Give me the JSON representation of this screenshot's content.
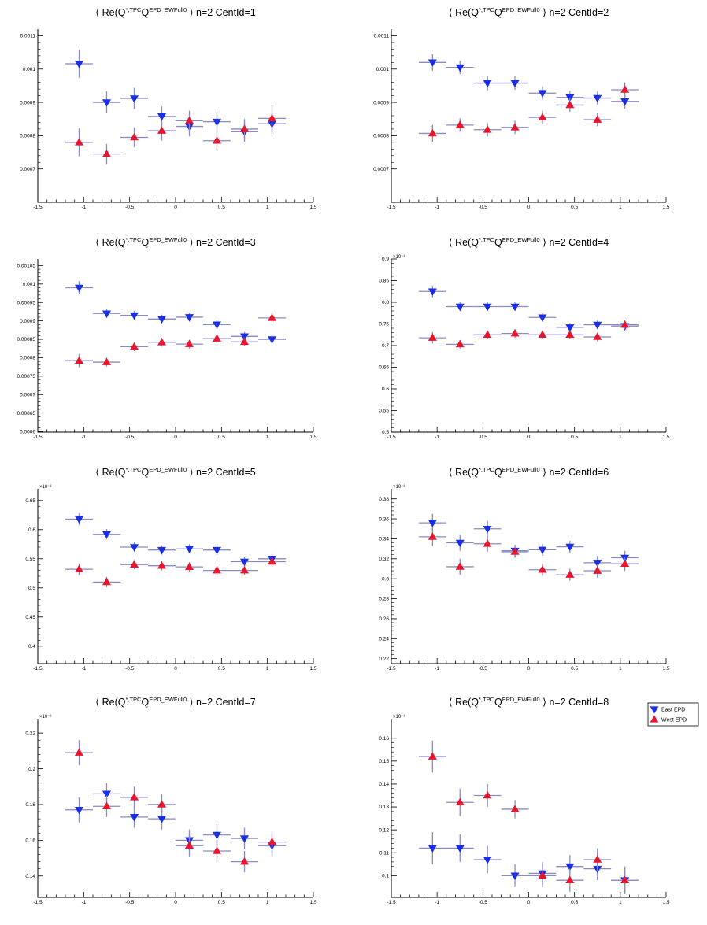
{
  "colors": {
    "east": "#1a2ee6",
    "west": "#e8162c",
    "bar": "#8a8ac8",
    "axis": "#000000"
  },
  "legend": {
    "items": [
      {
        "label": "East EPD",
        "marker": "down-triangle",
        "color": "#1a2ee6"
      },
      {
        "label": "West EPD",
        "marker": "up-triangle",
        "color": "#e8162c"
      }
    ]
  },
  "chart_data": [
    {
      "type": "scatter",
      "title_parts": {
        "pre": "⟨ Re(Q",
        "sup1": "*,TPC",
        "mid": "Q",
        "sup2": "EPD_EWFull0",
        "post": "⟩  n=2  CentId=1"
      },
      "xlim": [
        -1.5,
        1.5
      ],
      "ylim": [
        0.0006,
        0.00112
      ],
      "xticks": [
        "-1.5",
        "-1",
        "-0.5",
        "0",
        "0.5",
        "1",
        "1.5"
      ],
      "yticks": [
        {
          "v": 0.0007,
          "t": "0.0007"
        },
        {
          "v": 0.0008,
          "t": "0.0008"
        },
        {
          "v": 0.0009,
          "t": "0.0009"
        },
        {
          "v": 0.001,
          "t": "0.001"
        },
        {
          "v": 0.0011,
          "t": "0.0011"
        }
      ],
      "exponent": "",
      "x": [
        -1.05,
        -0.75,
        -0.45,
        -0.15,
        0.15,
        0.45,
        0.75,
        1.05
      ],
      "xerr": 0.15,
      "series": [
        {
          "name": "East EPD",
          "marker": "down",
          "values": [
            0.001016,
            0.0009,
            0.000912,
            0.000858,
            0.000828,
            0.000842,
            0.000812,
            0.000836
          ],
          "errors": [
            4.2e-05,
            3.3e-05,
            3.2e-05,
            3e-05,
            3e-05,
            3e-05,
            3e-05,
            3e-05
          ]
        },
        {
          "name": "West EPD",
          "marker": "up",
          "values": [
            0.00078,
            0.000745,
            0.000795,
            0.000815,
            0.000845,
            0.000785,
            0.00082,
            0.000852
          ],
          "errors": [
            4.2e-05,
            3e-05,
            3e-05,
            3e-05,
            3e-05,
            3e-05,
            3e-05,
            4e-05
          ]
        }
      ]
    },
    {
      "type": "scatter",
      "title_parts": {
        "pre": "⟨ Re(Q",
        "sup1": "*,TPC",
        "mid": "Q",
        "sup2": "EPD_EWFull0",
        "post": "⟩  n=2  CentId=2"
      },
      "xlim": [
        -1.5,
        1.5
      ],
      "ylim": [
        0.0006,
        0.00112
      ],
      "xticks": [
        "-1.5",
        "-1",
        "-0.5",
        "0",
        "0.5",
        "1",
        "1.5"
      ],
      "yticks": [
        {
          "v": 0.0007,
          "t": "0.0007"
        },
        {
          "v": 0.0008,
          "t": "0.0008"
        },
        {
          "v": 0.0009,
          "t": "0.0009"
        },
        {
          "v": 0.001,
          "t": "0.001"
        },
        {
          "v": 0.0011,
          "t": "0.0011"
        }
      ],
      "exponent": "",
      "x": [
        -1.05,
        -0.75,
        -0.45,
        -0.15,
        0.15,
        0.45,
        0.75,
        1.05
      ],
      "xerr": 0.15,
      "series": [
        {
          "name": "East EPD",
          "marker": "down",
          "values": [
            0.00102,
            0.001005,
            0.000958,
            0.000958,
            0.000928,
            0.000915,
            0.000913,
            0.000903
          ],
          "errors": [
            2.5e-05,
            2e-05,
            2.2e-05,
            2e-05,
            2e-05,
            2e-05,
            2e-05,
            2.2e-05
          ]
        },
        {
          "name": "West EPD",
          "marker": "up",
          "values": [
            0.000807,
            0.000832,
            0.000818,
            0.000825,
            0.000855,
            0.000892,
            0.000848,
            0.000938
          ],
          "errors": [
            2.5e-05,
            2e-05,
            2e-05,
            2e-05,
            2e-05,
            2e-05,
            2e-05,
            2.2e-05
          ]
        }
      ]
    },
    {
      "type": "scatter",
      "title_parts": {
        "pre": "⟨ Re(Q",
        "sup1": "*,TPC",
        "mid": "Q",
        "sup2": "EPD_EWFull0",
        "post": "⟩  n=2  CentId=3"
      },
      "xlim": [
        -1.5,
        1.5
      ],
      "ylim": [
        0.000598,
        0.001068
      ],
      "xticks": [
        "-1.5",
        "-1",
        "-0.5",
        "0",
        "0.5",
        "1",
        "1.5"
      ],
      "yticks": [
        {
          "v": 0.0006,
          "t": "0.0006"
        },
        {
          "v": 0.00065,
          "t": "0.00065"
        },
        {
          "v": 0.0007,
          "t": "0.0007"
        },
        {
          "v": 0.00075,
          "t": "0.00075"
        },
        {
          "v": 0.0008,
          "t": "0.0008"
        },
        {
          "v": 0.00085,
          "t": "0.00085"
        },
        {
          "v": 0.0009,
          "t": "0.0009"
        },
        {
          "v": 0.00095,
          "t": "0.00095"
        },
        {
          "v": 0.001,
          "t": "0.001"
        },
        {
          "v": 0.00105,
          "t": "0.00105"
        }
      ],
      "exponent": "",
      "x": [
        -1.05,
        -0.75,
        -0.45,
        -0.15,
        0.15,
        0.45,
        0.75,
        1.05
      ],
      "xerr": 0.15,
      "series": [
        {
          "name": "East EPD",
          "marker": "down",
          "values": [
            0.00099,
            0.00092,
            0.000915,
            0.000905,
            0.00091,
            0.00089,
            0.000858,
            0.00085
          ],
          "errors": [
            1.8e-05,
            1.2e-05,
            1.2e-05,
            1.2e-05,
            1.2e-05,
            1.2e-05,
            1.2e-05,
            1.2e-05
          ]
        },
        {
          "name": "West EPD",
          "marker": "up",
          "values": [
            0.000792,
            0.000788,
            0.00083,
            0.000842,
            0.000837,
            0.000852,
            0.000843,
            0.000908
          ],
          "errors": [
            1.8e-05,
            1.2e-05,
            1.2e-05,
            1.2e-05,
            1.2e-05,
            1.2e-05,
            1.2e-05,
            1.2e-05
          ]
        }
      ]
    },
    {
      "type": "scatter",
      "title_parts": {
        "pre": "⟨ Re(Q",
        "sup1": "*,TPC",
        "mid": "Q",
        "sup2": "EPD_EWFull0",
        "post": "⟩  n=2  CentId=4"
      },
      "xlim": [
        -1.5,
        1.5
      ],
      "ylim": [
        0.5,
        0.9
      ],
      "xticks": [
        "-1.5",
        "-1",
        "-0.5",
        "0",
        "0.5",
        "1",
        "1.5"
      ],
      "yticks": [
        {
          "v": 0.5,
          "t": "0.5"
        },
        {
          "v": 0.55,
          "t": "0.55"
        },
        {
          "v": 0.6,
          "t": "0.6"
        },
        {
          "v": 0.65,
          "t": "0.65"
        },
        {
          "v": 0.7,
          "t": "0.7"
        },
        {
          "v": 0.75,
          "t": "0.75"
        },
        {
          "v": 0.8,
          "t": "0.8"
        },
        {
          "v": 0.85,
          "t": "0.85"
        },
        {
          "v": 0.9,
          "t": "0.9"
        }
      ],
      "exponent": "×10⁻³",
      "x": [
        -1.05,
        -0.75,
        -0.45,
        -0.15,
        0.15,
        0.45,
        0.75,
        1.05
      ],
      "xerr": 0.15,
      "series": [
        {
          "name": "East EPD",
          "marker": "down",
          "values": [
            0.825,
            0.79,
            0.79,
            0.79,
            0.765,
            0.742,
            0.748,
            0.745
          ],
          "errors": [
            0.013,
            0.01,
            0.01,
            0.01,
            0.01,
            0.01,
            0.01,
            0.01
          ]
        },
        {
          "name": "West EPD",
          "marker": "up",
          "values": [
            0.718,
            0.703,
            0.725,
            0.728,
            0.725,
            0.725,
            0.72,
            0.748
          ],
          "errors": [
            0.013,
            0.01,
            0.01,
            0.01,
            0.01,
            0.01,
            0.01,
            0.01
          ]
        }
      ]
    },
    {
      "type": "scatter",
      "title_parts": {
        "pre": "⟨ Re(Q",
        "sup1": "*,TPC",
        "mid": "Q",
        "sup2": "EPD_EWFull0",
        "post": "⟩  n=2  CentId=5"
      },
      "xlim": [
        -1.5,
        1.5
      ],
      "ylim": [
        0.37,
        0.67
      ],
      "xticks": [
        "-1.5",
        "-1",
        "-0.5",
        "0",
        "0.5",
        "1",
        "1.5"
      ],
      "yticks": [
        {
          "v": 0.4,
          "t": "0.4"
        },
        {
          "v": 0.45,
          "t": "0.45"
        },
        {
          "v": 0.5,
          "t": "0.5"
        },
        {
          "v": 0.55,
          "t": "0.55"
        },
        {
          "v": 0.6,
          "t": "0.6"
        },
        {
          "v": 0.65,
          "t": "0.65"
        }
      ],
      "exponent": "×10⁻³",
      "x": [
        -1.05,
        -0.75,
        -0.45,
        -0.15,
        0.15,
        0.45,
        0.75,
        1.05
      ],
      "xerr": 0.15,
      "series": [
        {
          "name": "East EPD",
          "marker": "down",
          "values": [
            0.618,
            0.592,
            0.57,
            0.565,
            0.567,
            0.565,
            0.545,
            0.55
          ],
          "errors": [
            0.01,
            0.009,
            0.008,
            0.008,
            0.008,
            0.008,
            0.008,
            0.008
          ]
        },
        {
          "name": "West EPD",
          "marker": "up",
          "values": [
            0.532,
            0.51,
            0.54,
            0.538,
            0.536,
            0.53,
            0.53,
            0.545
          ],
          "errors": [
            0.01,
            0.009,
            0.008,
            0.008,
            0.008,
            0.008,
            0.008,
            0.008
          ]
        }
      ]
    },
    {
      "type": "scatter",
      "title_parts": {
        "pre": "⟨ Re(Q",
        "sup1": "*,TPC",
        "mid": "Q",
        "sup2": "EPD_EWFull0",
        "post": "⟩  n=2  CentId=6"
      },
      "xlim": [
        -1.5,
        1.5
      ],
      "ylim": [
        0.215,
        0.39
      ],
      "xticks": [
        "-1.5",
        "-1",
        "-0.5",
        "0",
        "0.5",
        "1",
        "1.5"
      ],
      "yticks": [
        {
          "v": 0.22,
          "t": "0.22"
        },
        {
          "v": 0.24,
          "t": "0.24"
        },
        {
          "v": 0.26,
          "t": "0.26"
        },
        {
          "v": 0.28,
          "t": "0.28"
        },
        {
          "v": 0.3,
          "t": "0.3"
        },
        {
          "v": 0.32,
          "t": "0.32"
        },
        {
          "v": 0.34,
          "t": "0.34"
        },
        {
          "v": 0.36,
          "t": "0.36"
        },
        {
          "v": 0.38,
          "t": "0.38"
        }
      ],
      "exponent": "×10⁻³",
      "x": [
        -1.05,
        -0.75,
        -0.45,
        -0.15,
        0.15,
        0.45,
        0.75,
        1.05
      ],
      "xerr": 0.15,
      "series": [
        {
          "name": "East EPD",
          "marker": "down",
          "values": [
            0.356,
            0.336,
            0.35,
            0.328,
            0.329,
            0.332,
            0.316,
            0.321
          ],
          "errors": [
            0.009,
            0.008,
            0.008,
            0.006,
            0.006,
            0.006,
            0.007,
            0.007
          ]
        },
        {
          "name": "West EPD",
          "marker": "up",
          "values": [
            0.342,
            0.312,
            0.335,
            0.327,
            0.309,
            0.304,
            0.308,
            0.315
          ],
          "errors": [
            0.009,
            0.008,
            0.008,
            0.006,
            0.006,
            0.006,
            0.007,
            0.007
          ]
        }
      ]
    },
    {
      "type": "scatter",
      "title_parts": {
        "pre": "⟨ Re(Q",
        "sup1": "*,TPC",
        "mid": "Q",
        "sup2": "EPD_EWFull0",
        "post": "⟩  n=2  CentId=7"
      },
      "xlim": [
        -1.5,
        1.5
      ],
      "ylim": [
        0.128,
        0.228
      ],
      "xticks": [
        "-1.5",
        "-1",
        "-0.5",
        "0",
        "0.5",
        "1",
        "1.5"
      ],
      "yticks": [
        {
          "v": 0.14,
          "t": "0.14"
        },
        {
          "v": 0.16,
          "t": "0.16"
        },
        {
          "v": 0.18,
          "t": "0.18"
        },
        {
          "v": 0.2,
          "t": "0.2"
        },
        {
          "v": 0.22,
          "t": "0.22"
        }
      ],
      "exponent": "×10⁻³",
      "x": [
        -1.05,
        -0.75,
        -0.45,
        -0.15,
        0.15,
        0.45,
        0.75,
        1.05
      ],
      "xerr": 0.15,
      "series": [
        {
          "name": "East EPD",
          "marker": "down",
          "values": [
            0.177,
            0.186,
            0.173,
            0.172,
            0.16,
            0.163,
            0.161,
            0.157
          ],
          "errors": [
            0.007,
            0.006,
            0.006,
            0.006,
            0.006,
            0.006,
            0.006,
            0.006
          ]
        },
        {
          "name": "West EPD",
          "marker": "up",
          "values": [
            0.209,
            0.179,
            0.184,
            0.18,
            0.157,
            0.154,
            0.148,
            0.159
          ],
          "errors": [
            0.007,
            0.006,
            0.006,
            0.006,
            0.006,
            0.006,
            0.006,
            0.006
          ]
        }
      ]
    },
    {
      "type": "scatter",
      "title_parts": {
        "pre": "⟨ Re(Q",
        "sup1": "*,TPC",
        "mid": "Q",
        "sup2": "EPD_EWFull0",
        "post": "⟩  n=2  CentId=8"
      },
      "xlim": [
        -1.5,
        1.5
      ],
      "ylim": [
        0.0905,
        0.1685
      ],
      "xticks": [
        "-1.5",
        "-1",
        "-0.5",
        "0",
        "0.5",
        "1",
        "1.5"
      ],
      "yticks": [
        {
          "v": 0.1,
          "t": "0.1"
        },
        {
          "v": 0.11,
          "t": "0.11"
        },
        {
          "v": 0.12,
          "t": "0.12"
        },
        {
          "v": 0.13,
          "t": "0.13"
        },
        {
          "v": 0.14,
          "t": "0.14"
        },
        {
          "v": 0.15,
          "t": "0.15"
        },
        {
          "v": 0.16,
          "t": "0.16"
        }
      ],
      "exponent": "×10⁻³",
      "x": [
        -1.05,
        -0.75,
        -0.45,
        -0.15,
        0.15,
        0.45,
        0.75,
        1.05
      ],
      "xerr": 0.15,
      "series": [
        {
          "name": "East EPD",
          "marker": "down",
          "values": [
            0.112,
            0.112,
            0.107,
            0.1,
            0.101,
            0.104,
            0.103,
            0.098
          ],
          "errors": [
            0.007,
            0.006,
            0.006,
            0.005,
            0.005,
            0.005,
            0.005,
            0.006
          ]
        },
        {
          "name": "West EPD",
          "marker": "up",
          "values": [
            0.152,
            0.132,
            0.135,
            0.129,
            0.1,
            0.098,
            0.107,
            0.098
          ],
          "errors": [
            0.007,
            0.006,
            0.005,
            0.004,
            0.005,
            0.005,
            0.005,
            0.006
          ]
        }
      ]
    }
  ]
}
